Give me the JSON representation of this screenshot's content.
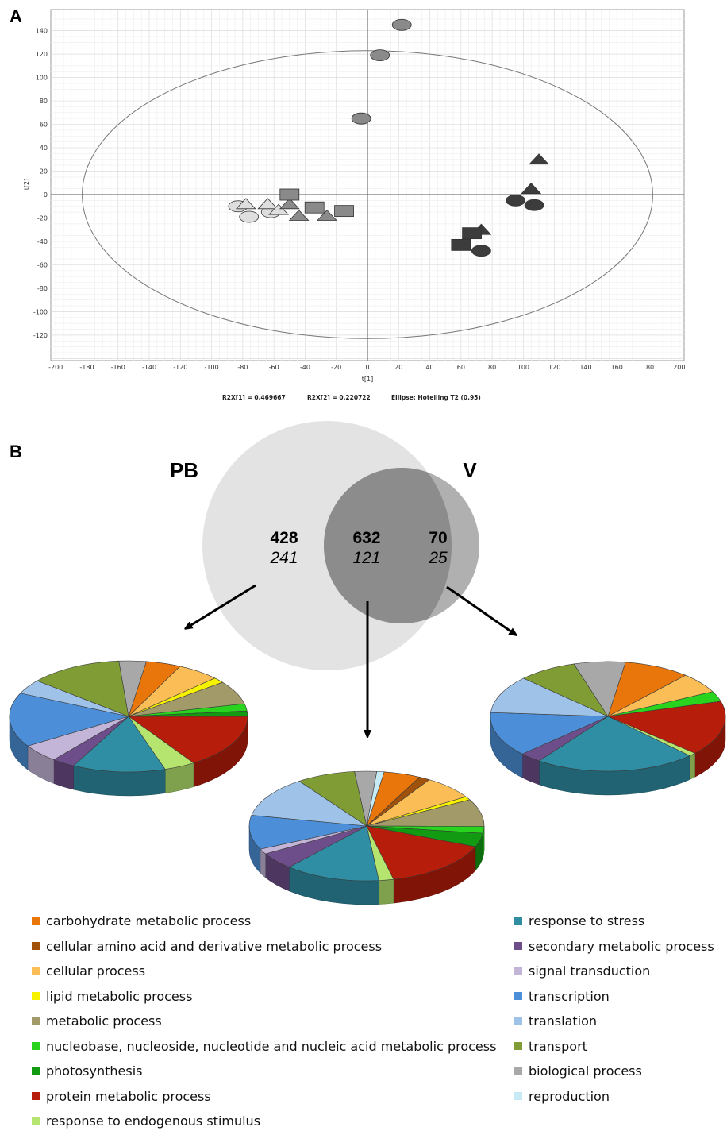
{
  "panel_labels": {
    "a": "A",
    "b": "B"
  },
  "chart_data": [
    {
      "type": "scatter",
      "panel": "A",
      "xlabel": "t[1]",
      "ylabel": "t[2]",
      "xlim": [
        -200,
        200
      ],
      "ylim": [
        -130,
        150
      ],
      "xticks": [
        -200,
        -180,
        -160,
        -140,
        -120,
        -100,
        -80,
        -60,
        -40,
        -20,
        0,
        20,
        40,
        60,
        80,
        100,
        120,
        140,
        160,
        180,
        200
      ],
      "yticks": [
        140,
        120,
        100,
        80,
        60,
        40,
        20,
        0,
        -20,
        -40,
        -60,
        -80,
        -100,
        -120
      ],
      "grid": true,
      "ellipse": {
        "rx": 183,
        "ry": 123
      },
      "footer": [
        "R2X[1] = 0.469667",
        "R2X[2] = 0.220722",
        "Ellipse: Hotelling T2 (0.95)"
      ],
      "points": [
        {
          "x": 22,
          "y": 145,
          "shape": "circle",
          "color": "#8a8a8a"
        },
        {
          "x": 8,
          "y": 119,
          "shape": "circle",
          "color": "#8a8a8a"
        },
        {
          "x": -4,
          "y": 65,
          "shape": "circle",
          "color": "#8a8a8a"
        },
        {
          "x": -83,
          "y": -10,
          "shape": "circle",
          "color": "#dedede"
        },
        {
          "x": -76,
          "y": -19,
          "shape": "circle",
          "color": "#dedede"
        },
        {
          "x": -62,
          "y": -15,
          "shape": "circle",
          "color": "#dedede"
        },
        {
          "x": -78,
          "y": -8,
          "shape": "triangle",
          "color": "#dedede"
        },
        {
          "x": -64,
          "y": -8,
          "shape": "triangle",
          "color": "#dedede"
        },
        {
          "x": -57,
          "y": -13,
          "shape": "triangle",
          "color": "#dedede"
        },
        {
          "x": -50,
          "y": -8,
          "shape": "triangle",
          "color": "#8a8a8a"
        },
        {
          "x": -44,
          "y": -18,
          "shape": "triangle",
          "color": "#8a8a8a"
        },
        {
          "x": -26,
          "y": -18,
          "shape": "triangle",
          "color": "#8a8a8a"
        },
        {
          "x": -50,
          "y": 0,
          "shape": "square",
          "color": "#8a8a8a"
        },
        {
          "x": -34,
          "y": -11,
          "shape": "square",
          "color": "#8a8a8a"
        },
        {
          "x": -15,
          "y": -14,
          "shape": "square",
          "color": "#8a8a8a"
        },
        {
          "x": 110,
          "y": 30,
          "shape": "triangle",
          "color": "#3c3c3c"
        },
        {
          "x": 105,
          "y": 5,
          "shape": "triangle",
          "color": "#3c3c3c"
        },
        {
          "x": 95,
          "y": -5,
          "shape": "circle",
          "color": "#3c3c3c"
        },
        {
          "x": 107,
          "y": -9,
          "shape": "circle",
          "color": "#3c3c3c"
        },
        {
          "x": 73,
          "y": -30,
          "shape": "triangle",
          "color": "#3c3c3c"
        },
        {
          "x": 67,
          "y": -33,
          "shape": "square",
          "color": "#3c3c3c"
        },
        {
          "x": 60,
          "y": -43,
          "shape": "square",
          "color": "#3c3c3c"
        },
        {
          "x": 73,
          "y": -48,
          "shape": "circle",
          "color": "#3c3c3c"
        }
      ]
    },
    {
      "type": "pie",
      "panel": "B-left",
      "slices": [
        {
          "category": "carbohydrate metabolic process",
          "value": 4.5
        },
        {
          "category": "cellular process",
          "value": 5.5
        },
        {
          "category": "lipid metabolic process",
          "value": 1.5
        },
        {
          "category": "metabolic process",
          "value": 6.5
        },
        {
          "category": "nucleobase, nucleoside, nucleotide and nucleic acid metabolic process",
          "value": 2
        },
        {
          "category": "photosynthesis",
          "value": 1.5
        },
        {
          "category": "protein metabolic process",
          "value": 15
        },
        {
          "category": "response to endogenous stimulus",
          "value": 4
        },
        {
          "category": "response to stress",
          "value": 12
        },
        {
          "category": "secondary metabolic process",
          "value": 3
        },
        {
          "category": "signal transduction",
          "value": 5
        },
        {
          "category": "transcription",
          "value": 15
        },
        {
          "category": "translation",
          "value": 4
        },
        {
          "category": "transport",
          "value": 12
        },
        {
          "category": "biological  process",
          "value": 3.5
        }
      ]
    },
    {
      "type": "pie",
      "panel": "B-middle",
      "slices": [
        {
          "category": "carbohydrate metabolic process",
          "value": 5
        },
        {
          "category": "cellular amino acid and derivative metabolic process",
          "value": 1.5
        },
        {
          "category": "cellular process",
          "value": 7
        },
        {
          "category": "lipid metabolic process",
          "value": 1
        },
        {
          "category": "metabolic process",
          "value": 8
        },
        {
          "category": "nucleobase, nucleoside, nucleotide and nucleic acid metabolic process",
          "value": 2
        },
        {
          "category": "photosynthesis",
          "value": 4
        },
        {
          "category": "protein metabolic process",
          "value": 15
        },
        {
          "category": "response to endogenous stimulus",
          "value": 2
        },
        {
          "category": "response to stress",
          "value": 13
        },
        {
          "category": "secondary metabolic process",
          "value": 5
        },
        {
          "category": "signal transduction",
          "value": 1.5
        },
        {
          "category": "transcription",
          "value": 10
        },
        {
          "category": "translation",
          "value": 12
        },
        {
          "category": "transport",
          "value": 8
        },
        {
          "category": "biological  process",
          "value": 3
        },
        {
          "category": "reproduction",
          "value": 1
        }
      ]
    },
    {
      "type": "pie",
      "panel": "B-right",
      "slices": [
        {
          "category": "carbohydrate metabolic process",
          "value": 9
        },
        {
          "category": "cellular process",
          "value": 6
        },
        {
          "category": "nucleobase, nucleoside, nucleotide and nucleic acid metabolic process",
          "value": 3
        },
        {
          "category": "protein metabolic process",
          "value": 16
        },
        {
          "category": "response to endogenous stimulus",
          "value": 1
        },
        {
          "category": "response to stress",
          "value": 22
        },
        {
          "category": "secondary metabolic process",
          "value": 3
        },
        {
          "category": "transcription",
          "value": 13
        },
        {
          "category": "translation",
          "value": 11
        },
        {
          "category": "transport",
          "value": 8
        },
        {
          "category": "biological  process",
          "value": 7
        }
      ]
    }
  ],
  "venn": {
    "left_name": "PB",
    "right_name": "V",
    "left_only": {
      "bold": "428",
      "italic": "241"
    },
    "overlap": {
      "bold": "632",
      "italic": "121"
    },
    "right_only": {
      "bold": "70",
      "italic": "25"
    },
    "colors": {
      "left": "#e3e3e3",
      "right": "#b0b0b0",
      "overlap": "#8c8c8c"
    }
  },
  "legend": {
    "left": [
      {
        "label": "carbohydrate metabolic process",
        "color": "#e8760b"
      },
      {
        "label": "cellular amino acid and derivative metabolic process",
        "color": "#a0520a"
      },
      {
        "label": "cellular process",
        "color": "#fbbd55"
      },
      {
        "label": "lipid metabolic process",
        "color": "#f7f200"
      },
      {
        "label": "metabolic process",
        "color": "#a39a6a"
      },
      {
        "label": "nucleobase, nucleoside, nucleotide and nucleic acid metabolic process",
        "color": "#2ad41e"
      },
      {
        "label": "photosynthesis",
        "color": "#129a12"
      },
      {
        "label": "protein metabolic process",
        "color": "#b61d0a"
      },
      {
        "label": "response to endogenous stimulus",
        "color": "#b5e56e"
      }
    ],
    "right": [
      {
        "label": "response to stress",
        "color": "#2f8ea3"
      },
      {
        "label": "secondary metabolic process",
        "color": "#6e4e8a"
      },
      {
        "label": "signal transduction",
        "color": "#c3b5d8"
      },
      {
        "label": "transcription",
        "color": "#4c8fd8"
      },
      {
        "label": "translation",
        "color": "#9fc3e8"
      },
      {
        "label": "transport",
        "color": "#7f9c35"
      },
      {
        "label": "biological  process",
        "color": "#a8a8a8"
      },
      {
        "label": "reproduction",
        "color": "#c6ebf5"
      }
    ]
  }
}
